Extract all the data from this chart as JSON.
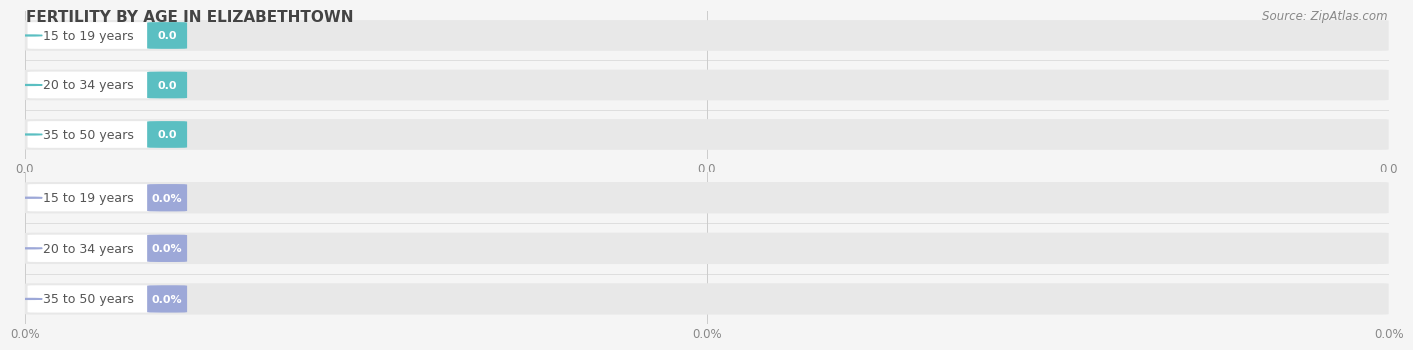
{
  "title": "FERTILITY BY AGE IN ELIZABETHTOWN",
  "source_text": "Source: ZipAtlas.com",
  "top_chart": {
    "categories": [
      "15 to 19 years",
      "20 to 34 years",
      "35 to 50 years"
    ],
    "values": [
      0.0,
      0.0,
      0.0
    ],
    "bar_color": "#5bbfc2",
    "value_label": "0.0",
    "x_tick_labels": [
      "0.0",
      "0.0",
      "0.0"
    ]
  },
  "bottom_chart": {
    "categories": [
      "15 to 19 years",
      "20 to 34 years",
      "35 to 50 years"
    ],
    "values": [
      0.0,
      0.0,
      0.0
    ],
    "bar_color": "#9da8d8",
    "value_label": "0.0%",
    "x_tick_labels": [
      "0.0%",
      "0.0%",
      "0.0%"
    ]
  },
  "fig_width": 14.06,
  "fig_height": 3.3,
  "bg_color": "#f5f5f5",
  "bar_bg_color": "#e8e8e8",
  "title_fontsize": 11,
  "label_fontsize": 9,
  "value_fontsize": 8,
  "tick_fontsize": 8.5,
  "source_fontsize": 8.5
}
